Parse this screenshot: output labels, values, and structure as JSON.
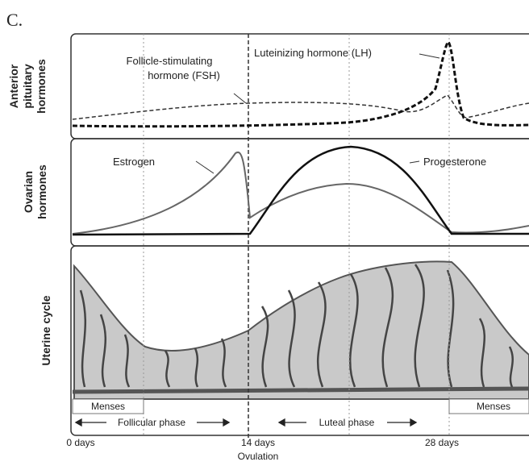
{
  "header": {
    "label": "C."
  },
  "panels": [
    {
      "label": [
        "Anterior",
        "pituitary",
        "hormones"
      ]
    },
    {
      "label": [
        "Ovarian",
        "hormones"
      ]
    },
    {
      "label": [
        "Uterine cycle"
      ]
    }
  ],
  "curves": {
    "fsh": [
      "Follicle-stimulating",
      "hormone (FSH)"
    ],
    "lh": "Luteinizing hormone (LH)",
    "estrogen": "Estrogen",
    "progesterone": "Progesterone"
  },
  "menses": [
    "Menses",
    "Menses"
  ],
  "phases": [
    "Follicular phase",
    "Luteal phase"
  ],
  "days": [
    "0 days",
    "14 days",
    "28 days"
  ],
  "ovulation": "Ovulation"
}
